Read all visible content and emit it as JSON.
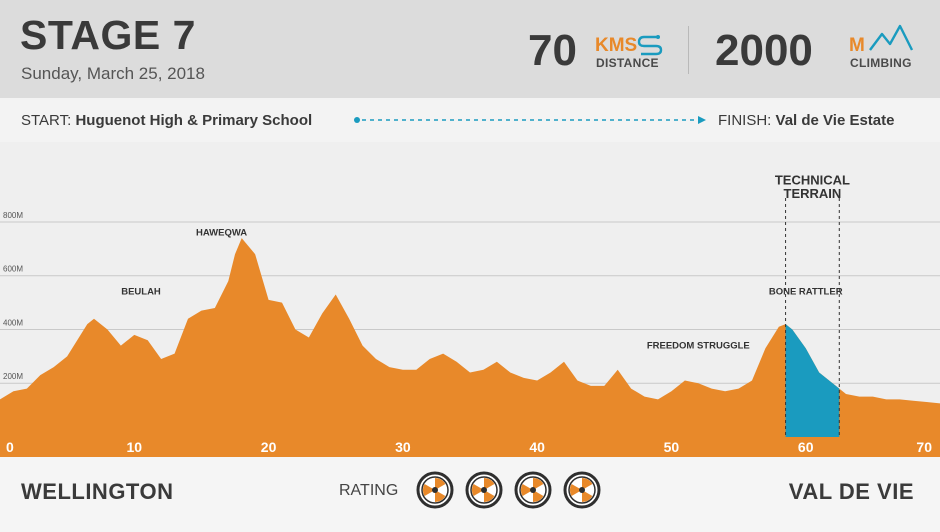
{
  "header": {
    "title": "STAGE 7",
    "date": "Sunday, March 25, 2018",
    "distance": {
      "value": "70",
      "unit": "KMS",
      "label": "DISTANCE",
      "icon": "route-s-icon"
    },
    "climbing": {
      "value": "2000",
      "unit": "M",
      "label": "CLIMBING",
      "icon": "mountains-icon"
    }
  },
  "route": {
    "start_label": "START:",
    "start_place": "Huguenot High & Primary School",
    "finish_label": "FINISH:",
    "finish_place": "Val de Vie Estate"
  },
  "footer": {
    "start_town": "WELLINGTON",
    "finish_town": "VAL DE VIE",
    "rating_label": "RATING",
    "rating_count": 4,
    "rating_icon": "wheel-icon"
  },
  "colors": {
    "profile": "#e8892a",
    "technical": "#1a9bbf",
    "route_line": "#1a9bbf",
    "header_bg": "#dcdcdc",
    "text": "#3a3a3a"
  },
  "chart_data": {
    "type": "area",
    "xlim": [
      0,
      70
    ],
    "ylim": [
      0,
      900
    ],
    "x_ticks": [
      0,
      10,
      20,
      30,
      40,
      50,
      60,
      70
    ],
    "x_tick_labels": [
      "0",
      "10",
      "20",
      "30",
      "40",
      "50",
      "60",
      "70"
    ],
    "y_ticks": [
      200,
      400,
      600,
      800
    ],
    "y_tick_labels": [
      "200M",
      "400M",
      "600M",
      "800M"
    ],
    "grid": true,
    "series": [
      {
        "x": [
          0,
          1,
          2,
          3,
          4,
          5,
          6,
          6.5,
          7,
          7.5,
          8,
          9,
          10,
          11,
          12,
          13,
          14,
          15,
          16,
          17,
          17.5,
          18,
          19,
          20,
          21,
          22,
          23,
          24,
          25,
          26,
          27,
          28,
          29,
          30,
          31,
          32,
          33,
          34,
          35,
          36,
          37,
          38,
          39,
          40,
          41,
          42,
          43,
          44,
          45,
          46,
          47,
          48,
          49,
          50,
          51,
          52,
          53,
          54,
          55,
          56,
          57,
          58,
          58.5,
          59,
          60,
          61,
          62,
          63,
          64,
          65,
          66,
          67,
          68,
          69,
          70
        ],
        "y": [
          140,
          170,
          180,
          230,
          260,
          300,
          380,
          420,
          440,
          420,
          400,
          340,
          380,
          360,
          290,
          310,
          440,
          470,
          480,
          580,
          680,
          740,
          680,
          510,
          500,
          400,
          370,
          460,
          530,
          440,
          340,
          290,
          260,
          250,
          250,
          290,
          310,
          280,
          240,
          250,
          280,
          240,
          220,
          210,
          240,
          280,
          210,
          190,
          190,
          250,
          180,
          150,
          140,
          170,
          210,
          200,
          180,
          170,
          180,
          210,
          330,
          410,
          420,
          400,
          330,
          240,
          200,
          160,
          150,
          150,
          140,
          140,
          135,
          130,
          125
        ]
      }
    ],
    "technical_section": {
      "x_start": 58.5,
      "x_end": 62.5
    },
    "annotations": [
      {
        "text": "HAWEQWA",
        "x": 16.5,
        "y": 750
      },
      {
        "text": "BEULAH",
        "x": 10.5,
        "y": 530
      },
      {
        "text": "FREEDOM STRUGGLE",
        "x": 52,
        "y": 330
      },
      {
        "text": "BONE RATTLER",
        "x": 60,
        "y": 530
      },
      {
        "text": "TECHNICAL",
        "x": 60.5,
        "y": 940
      },
      {
        "text": "TERRAIN",
        "x": 60.5,
        "y": 890
      }
    ]
  }
}
